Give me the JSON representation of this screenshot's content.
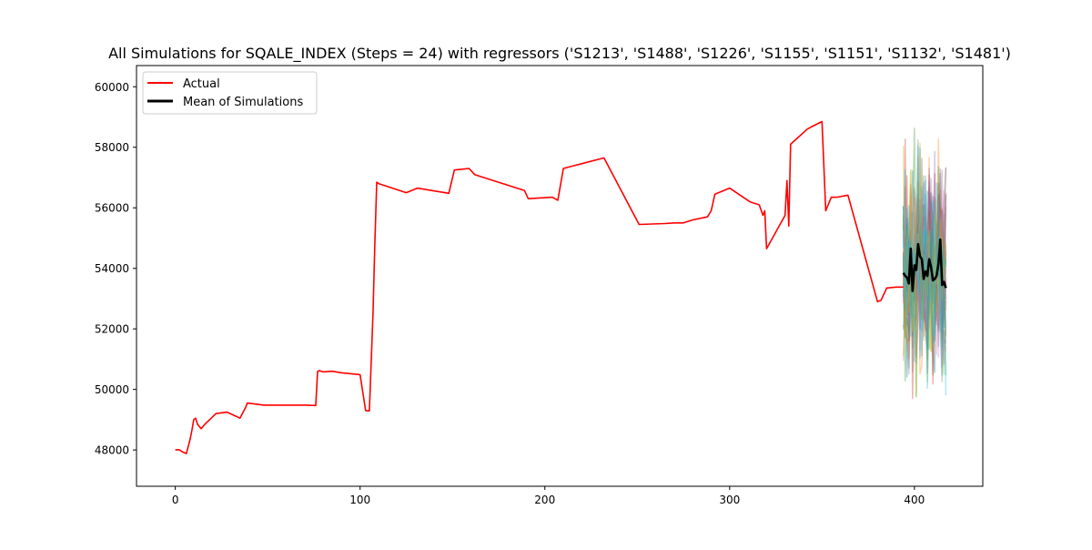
{
  "chart_data": {
    "type": "line",
    "title": "All Simulations for SQALE_INDEX (Steps = 24) with regressors ('S1213', 'S1488', 'S1226', 'S1155', 'S1151', 'S1132', 'S1481')",
    "xlabel": "",
    "ylabel": "",
    "xlim": [
      -21,
      437
    ],
    "ylim": [
      46800,
      60700
    ],
    "x_ticks": [
      0,
      100,
      200,
      300,
      400
    ],
    "y_ticks": [
      48000,
      50000,
      52000,
      54000,
      56000,
      58000,
      60000
    ],
    "grid": false,
    "legend": {
      "placement": "top-left",
      "entries": [
        "Actual",
        "Mean of Simulations"
      ]
    },
    "colors": {
      "actual": "#ff0000",
      "mean": "#000000"
    },
    "simulation_colors": [
      "#1f77b4",
      "#ff7f0e",
      "#2ca02c",
      "#d62728",
      "#9467bd",
      "#8c564b",
      "#e377c2",
      "#7f7f7f",
      "#bcbd22",
      "#17becf"
    ],
    "series": [
      {
        "name": "Actual",
        "x": [
          0,
          2,
          4,
          6,
          8,
          9,
          10,
          11,
          12,
          14,
          16,
          22,
          28,
          35,
          38,
          39,
          48,
          60,
          70,
          76,
          77,
          78,
          80,
          85,
          90,
          95,
          100,
          103,
          105,
          107,
          108,
          109,
          110,
          125,
          131,
          148,
          151,
          159,
          162,
          189,
          191,
          204,
          207,
          210,
          232,
          251,
          265,
          270,
          275,
          280,
          288,
          290,
          292,
          300,
          311,
          316,
          318,
          319,
          320,
          330,
          331,
          332,
          333,
          342,
          345,
          350,
          352,
          355,
          358,
          364,
          380,
          382,
          385,
          390,
          394
        ],
        "values": [
          48000,
          48010,
          47930,
          47880,
          48350,
          48650,
          49000,
          49050,
          48850,
          48700,
          48850,
          49200,
          49250,
          49050,
          49400,
          49550,
          49480,
          49480,
          49480,
          49470,
          50600,
          50620,
          50580,
          50600,
          50550,
          50520,
          50490,
          49300,
          49290,
          52500,
          54800,
          56850,
          56800,
          56500,
          56650,
          56480,
          57250,
          57300,
          57100,
          56570,
          56300,
          56350,
          56250,
          57300,
          57650,
          55450,
          55480,
          55500,
          55500,
          55600,
          55700,
          55900,
          56450,
          56650,
          56200,
          56100,
          55750,
          55900,
          54650,
          55750,
          56900,
          55400,
          58100,
          58600,
          58700,
          58850,
          55900,
          56350,
          56350,
          56420,
          52900,
          52950,
          53350,
          53380,
          53380
        ]
      },
      {
        "name": "Mean of Simulations",
        "x": [
          394,
          395,
          396,
          397,
          398,
          399,
          400,
          401,
          402,
          403,
          404,
          405,
          406,
          407,
          408,
          409,
          410,
          411,
          412,
          413,
          414,
          415,
          416,
          417
        ],
        "values": [
          53850,
          53750,
          53700,
          53500,
          54650,
          53250,
          54100,
          53950,
          54800,
          54400,
          54300,
          53650,
          53900,
          53750,
          54300,
          54050,
          53600,
          53650,
          53750,
          54150,
          54950,
          53450,
          53550,
          53350
        ]
      }
    ]
  }
}
